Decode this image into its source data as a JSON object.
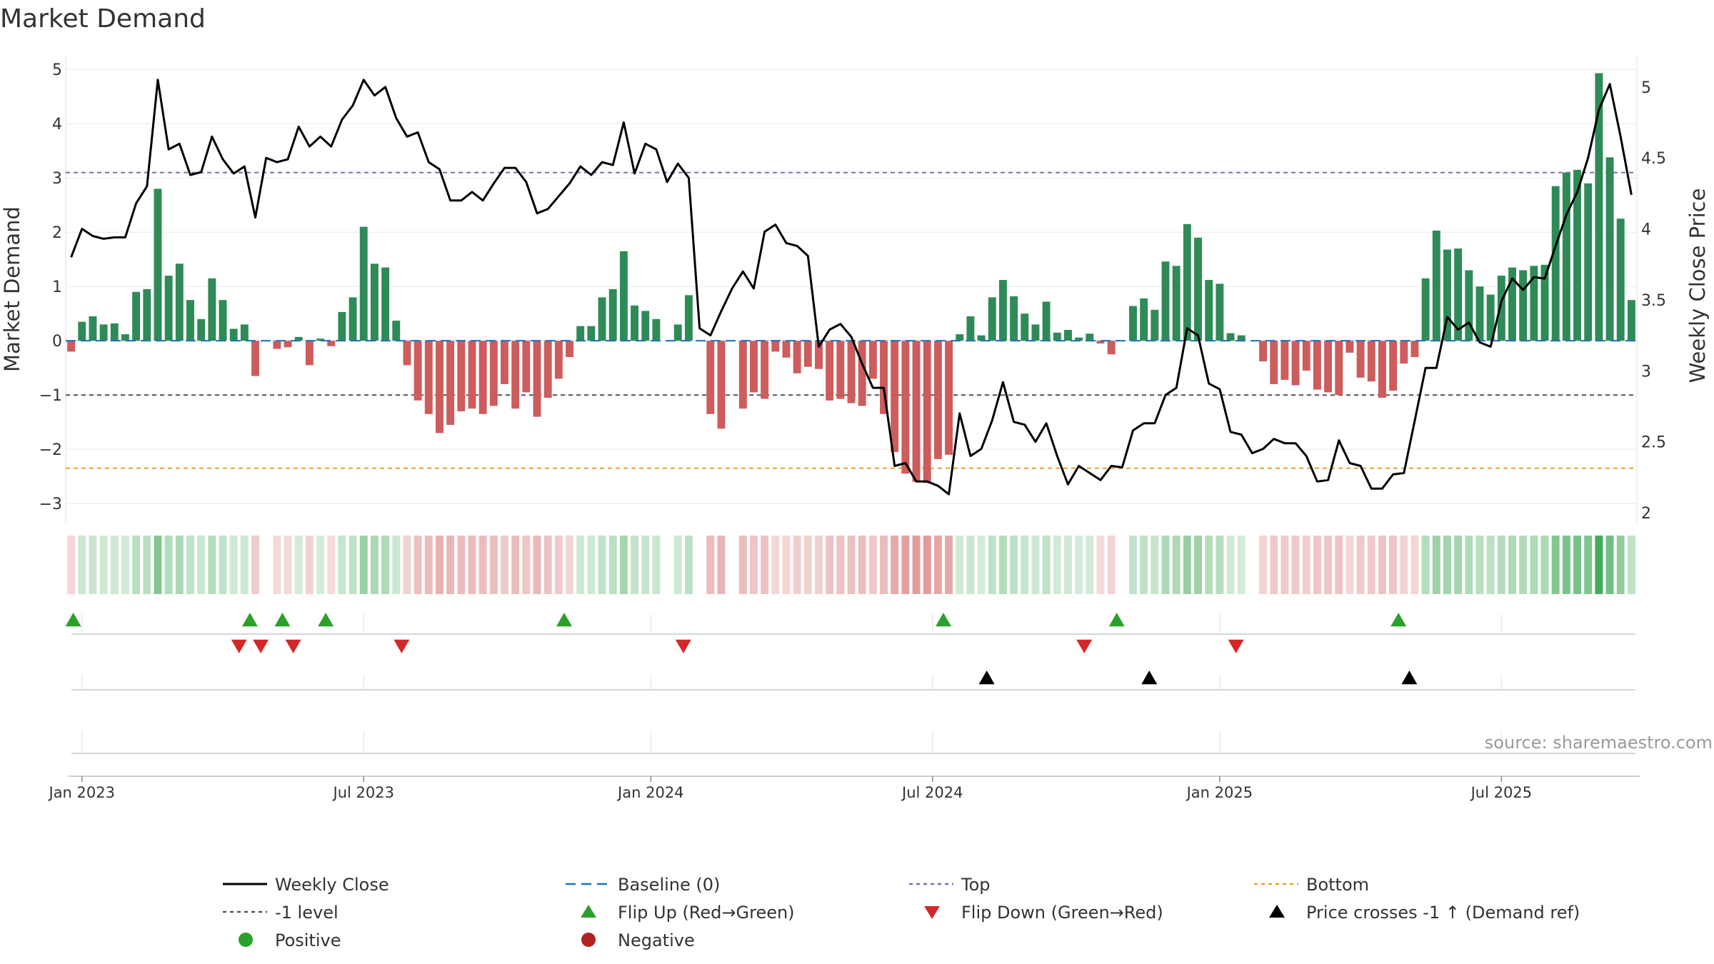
{
  "chart_data": {
    "type": "bar",
    "title": "Market Demand",
    "ylabel_left": "Market Demand",
    "ylabel_right": "Weekly Close Price",
    "ylim_left": [
      -3.3,
      5.2
    ],
    "ylim_right": [
      1.95,
      5.2
    ],
    "left_ticks": [
      5,
      4,
      3,
      2,
      1,
      0,
      -1,
      -2,
      -3
    ],
    "left_tick_labels": [
      "5",
      "4",
      "3",
      "2",
      "1",
      "0",
      "−1",
      "−2",
      "−3"
    ],
    "right_ticks": [
      5,
      4.5,
      4,
      3.5,
      3,
      2.5,
      2
    ],
    "right_tick_labels": [
      "5",
      "4.5",
      "4",
      "3.5",
      "3",
      "2.5",
      "2"
    ],
    "x_ticks": [
      {
        "label": "Jan 2023",
        "week": 1
      },
      {
        "label": "Jul 2023",
        "week": 27
      },
      {
        "label": "Jan 2024",
        "week": 53.5
      },
      {
        "label": "Jul 2024",
        "week": 79.5
      },
      {
        "label": "Jan 2025",
        "week": 106
      },
      {
        "label": "Jul 2025",
        "week": 132
      }
    ],
    "levels": {
      "top": 3.1,
      "minus_one": -1,
      "bottom": -2.35,
      "baseline": 0
    },
    "demand": [
      -0.2,
      0.35,
      0.45,
      0.3,
      0.32,
      0.12,
      0.9,
      0.95,
      2.8,
      1.2,
      1.42,
      0.75,
      0.4,
      1.15,
      0.75,
      0.22,
      0.3,
      -0.65,
      0,
      -0.15,
      -0.12,
      0.07,
      -0.45,
      0.04,
      -0.1,
      0.53,
      0.8,
      2.1,
      1.42,
      1.35,
      0.37,
      -0.45,
      -1.1,
      -1.35,
      -1.7,
      -1.55,
      -1.3,
      -1.25,
      -1.35,
      -1.2,
      -0.8,
      -1.25,
      -0.95,
      -1.4,
      -1.05,
      -0.7,
      -0.3,
      0.27,
      0.27,
      0.8,
      0.95,
      1.65,
      0.65,
      0.55,
      0.4,
      0,
      0.3,
      0.84,
      0,
      -1.35,
      -1.62,
      0,
      -1.25,
      -0.95,
      -1.07,
      -0.2,
      -0.31,
      -0.6,
      -0.48,
      -0.52,
      -1.1,
      -1.07,
      -1.15,
      -1.2,
      -0.7,
      -1.35,
      -2.05,
      -2.45,
      -2.6,
      -2.62,
      -2.18,
      -2.1,
      0.12,
      0.45,
      0.1,
      0.8,
      1.12,
      0.82,
      0.5,
      0.3,
      0.72,
      0.15,
      0.2,
      0.06,
      0.13,
      -0.05,
      -0.25,
      0,
      0.64,
      0.78,
      0.57,
      1.46,
      1.38,
      2.15,
      1.9,
      1.12,
      1.05,
      0.14,
      0.1,
      0,
      -0.38,
      -0.8,
      -0.72,
      -0.82,
      -0.55,
      -0.9,
      -0.95,
      -1.0,
      -0.22,
      -0.68,
      -0.75,
      -1.05,
      -0.92,
      -0.42,
      -0.3,
      1.15,
      2.03,
      1.68,
      1.7,
      1.3,
      1.0,
      0.85,
      1.2,
      1.35,
      1.3,
      1.38,
      1.4,
      2.85,
      3.1,
      3.15,
      2.9,
      4.93,
      3.38,
      2.25,
      0.75
    ],
    "close": [
      3.8,
      4.0,
      3.95,
      3.93,
      3.94,
      3.94,
      4.18,
      4.3,
      5.05,
      4.56,
      4.6,
      4.38,
      4.4,
      4.65,
      4.49,
      4.39,
      4.44,
      4.08,
      4.5,
      4.47,
      4.49,
      4.72,
      4.58,
      4.65,
      4.58,
      4.77,
      4.87,
      5.05,
      4.94,
      5.0,
      4.78,
      4.65,
      4.68,
      4.47,
      4.42,
      4.2,
      4.2,
      4.26,
      4.2,
      4.32,
      4.43,
      4.43,
      4.33,
      4.11,
      4.14,
      4.23,
      4.32,
      4.44,
      4.38,
      4.47,
      4.45,
      4.75,
      4.39,
      4.6,
      4.56,
      4.33,
      4.46,
      4.36,
      3.3,
      3.25,
      3.42,
      3.58,
      3.7,
      3.58,
      3.98,
      4.03,
      3.9,
      3.88,
      3.81,
      3.17,
      3.29,
      3.33,
      3.24,
      3.05,
      2.88,
      2.88,
      2.33,
      2.35,
      2.22,
      2.22,
      2.19,
      2.13,
      2.7,
      2.4,
      2.45,
      2.65,
      2.92,
      2.64,
      2.62,
      2.5,
      2.63,
      2.4,
      2.2,
      2.33,
      2.28,
      2.23,
      2.33,
      2.32,
      2.58,
      2.63,
      2.63,
      2.83,
      2.88,
      3.3,
      3.25,
      2.91,
      2.87,
      2.57,
      2.55,
      2.42,
      2.45,
      2.52,
      2.49,
      2.49,
      2.4,
      2.22,
      2.23,
      2.51,
      2.35,
      2.33,
      2.17,
      2.17,
      2.27,
      2.28,
      2.65,
      3.02,
      3.02,
      3.38,
      3.29,
      3.34,
      3.2,
      3.17,
      3.49,
      3.65,
      3.57,
      3.66,
      3.65,
      3.88,
      4.1,
      4.26,
      4.5,
      4.84,
      5.02,
      4.65,
      4.24
    ],
    "flip_up_weeks": [
      0.2,
      16.5,
      19.5,
      23.5,
      45.5,
      80.5,
      96.5,
      122.5
    ],
    "flip_down_weeks": [
      15.5,
      17.5,
      20.5,
      30.5,
      56.5,
      93.5,
      107.5
    ],
    "price_cross_weeks": [
      84.5,
      99.5,
      123.5
    ],
    "source": "source: sharemaestro.com",
    "legend": [
      {
        "label": "Weekly Close",
        "marker": "line",
        "color": "#000000"
      },
      {
        "label": "Baseline (0)",
        "marker": "dash",
        "color": "#1f77b4"
      },
      {
        "label": "Top",
        "marker": "dot",
        "color": "#7b6fb3"
      },
      {
        "label": "Bottom",
        "marker": "dot",
        "color": "#e8a02e"
      },
      {
        "label": "-1 level",
        "marker": "dot",
        "color": "#555555"
      },
      {
        "label": "Flip Up (Red→Green)",
        "marker": "triangle-up",
        "color": "#2ca02c"
      },
      {
        "label": "Flip Down (Green→Red)",
        "marker": "triangle-down",
        "color": "#d62728"
      },
      {
        "label": "Price crosses -1 ↑ (Demand ref)",
        "marker": "triangle-up",
        "color": "#000000"
      },
      {
        "label": "Positive",
        "marker": "circle",
        "color": "#2ca02c"
      },
      {
        "label": "Negative",
        "marker": "circle",
        "color": "#b22222"
      }
    ],
    "colors": {
      "positive_bar": "#2e8b57",
      "negative_bar": "#cd5c5c",
      "close_line": "#000000"
    }
  }
}
